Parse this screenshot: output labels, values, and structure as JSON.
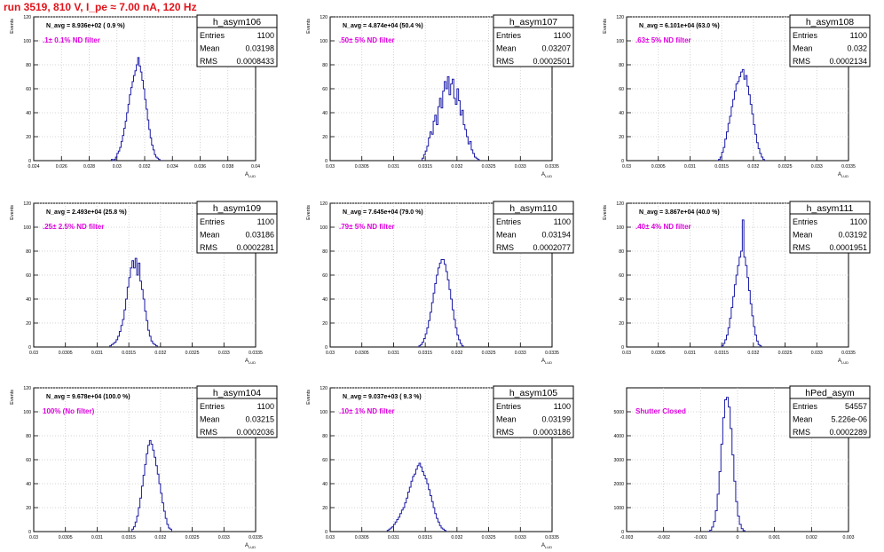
{
  "page_title": "run 3519,   810 V, I_pe ≈ 7.00 nA, 120 Hz",
  "colors": {
    "title": "#e0141a",
    "annotation": "#e000e0",
    "histogram": "#1a1aa6",
    "grid": "#c8c8c8"
  },
  "chart_data": [
    {
      "type": "histogram",
      "name": "h_asym106",
      "navg": "N_avg = 8.936e+02 ( 0.9 %)",
      "filter": ".1± 0.1% ND filter",
      "stats": {
        "entries": "1100",
        "mean": "0.03198",
        "rms": "0.0008433"
      },
      "ylabel": "Events",
      "xlabel": "A",
      "xlim": [
        0.024,
        0.04
      ],
      "ylim": [
        0,
        120
      ],
      "grid": true,
      "xticks": [
        "0.024",
        "0.026",
        "0.028",
        "0.03",
        "0.032",
        "0.034",
        "0.036",
        "0.038",
        "0.04"
      ],
      "yticks": [
        "0",
        "20",
        "40",
        "60",
        "80",
        "100",
        "120"
      ],
      "x_start": 0.0296,
      "bin_width": 0.0001,
      "counts": [
        1,
        0,
        1,
        3,
        6,
        8,
        11,
        16,
        21,
        27,
        33,
        40,
        47,
        55,
        61,
        66,
        71,
        75,
        80,
        86,
        79,
        74,
        67,
        60,
        51,
        43,
        34,
        26,
        19,
        13,
        9,
        5,
        3,
        2,
        1
      ]
    },
    {
      "type": "histogram",
      "name": "h_asym107",
      "navg": "N_avg = 4.874e+04 (50.4 %)",
      "filter": ".50± 5% ND filter",
      "stats": {
        "entries": "1100",
        "mean": "0.03207",
        "rms": "0.0002501"
      },
      "ylabel": "Events",
      "xlabel": "A",
      "xlim": [
        0.03,
        0.0335
      ],
      "ylim": [
        0,
        120
      ],
      "grid": true,
      "xticks": [
        "0.03",
        "0.0305",
        "0.031",
        "0.0315",
        "0.032",
        "0.0325",
        "0.033",
        "0.0335"
      ],
      "yticks": [
        "0",
        "20",
        "40",
        "60",
        "80",
        "100",
        "120"
      ],
      "x_start": 0.03145,
      "bin_width": 2.5e-05,
      "counts": [
        2,
        5,
        8,
        12,
        19,
        24,
        22,
        33,
        38,
        30,
        45,
        52,
        44,
        58,
        66,
        60,
        70,
        55,
        64,
        68,
        52,
        47,
        60,
        50,
        38,
        42,
        30,
        26,
        20,
        14,
        16,
        9,
        6,
        3,
        2,
        1
      ]
    },
    {
      "type": "histogram",
      "name": "h_asym108",
      "navg": "N_avg = 6.101e+04 (63.0 %)",
      "filter": ".63± 5% ND filter",
      "stats": {
        "entries": "1100",
        "mean": "0.032",
        "rms": "0.0002134"
      },
      "ylabel": "Events",
      "xlabel": "A",
      "xlim": [
        0.03,
        0.0335
      ],
      "ylim": [
        0,
        120
      ],
      "grid": true,
      "xticks": [
        "0.03",
        "0.0305",
        "0.031",
        "0.0315",
        "0.032",
        "0.0325",
        "0.033",
        "0.0335"
      ],
      "yticks": [
        "0",
        "20",
        "40",
        "60",
        "80",
        "100",
        "120"
      ],
      "x_start": 0.03145,
      "bin_width": 2.5e-05,
      "counts": [
        1,
        3,
        7,
        11,
        18,
        24,
        31,
        37,
        45,
        51,
        58,
        64,
        66,
        70,
        74,
        76,
        68,
        71,
        62,
        55,
        47,
        39,
        30,
        22,
        15,
        10,
        6,
        3,
        1
      ]
    },
    {
      "type": "histogram",
      "name": "h_asym109",
      "navg": "N_avg = 2.493e+04 (25.8 %)",
      "filter": ".25± 2.5% ND filter",
      "stats": {
        "entries": "1100",
        "mean": "0.03186",
        "rms": "0.0002281"
      },
      "ylabel": "Events",
      "xlabel": "A",
      "xlim": [
        0.03,
        0.0335
      ],
      "ylim": [
        0,
        120
      ],
      "grid": true,
      "xticks": [
        "0.03",
        "0.0305",
        "0.031",
        "0.0315",
        "0.032",
        "0.0325",
        "0.033",
        "0.0335"
      ],
      "yticks": [
        "0",
        "20",
        "40",
        "60",
        "80",
        "100",
        "120"
      ],
      "x_start": 0.0312,
      "bin_width": 2.5e-05,
      "counts": [
        1,
        2,
        3,
        4,
        6,
        9,
        13,
        18,
        23,
        31,
        40,
        50,
        58,
        66,
        72,
        66,
        74,
        60,
        70,
        55,
        48,
        40,
        30,
        22,
        14,
        9,
        5,
        3,
        2,
        1
      ]
    },
    {
      "type": "histogram",
      "name": "h_asym110",
      "navg": "N_avg = 7.645e+04 (79.0 %)",
      "filter": ".79± 5% ND filter",
      "stats": {
        "entries": "1100",
        "mean": "0.03194",
        "rms": "0.0002077"
      },
      "ylabel": "Events",
      "xlabel": "A",
      "xlim": [
        0.03,
        0.0335
      ],
      "ylim": [
        0,
        120
      ],
      "grid": true,
      "xticks": [
        "0.03",
        "0.0305",
        "0.031",
        "0.0315",
        "0.032",
        "0.0325",
        "0.033",
        "0.0335"
      ],
      "yticks": [
        "0",
        "20",
        "40",
        "60",
        "80",
        "100",
        "120"
      ],
      "x_start": 0.0314,
      "bin_width": 2.5e-05,
      "counts": [
        1,
        2,
        4,
        7,
        11,
        16,
        22,
        29,
        37,
        45,
        53,
        60,
        66,
        70,
        73,
        73,
        69,
        63,
        56,
        48,
        40,
        31,
        23,
        16,
        10,
        6,
        3,
        1
      ]
    },
    {
      "type": "histogram",
      "name": "h_asym111",
      "navg": "N_avg = 3.867e+04 (40.0 %)",
      "filter": ".40± 4% ND filter",
      "stats": {
        "entries": "1100",
        "mean": "0.03192",
        "rms": "0.0001951"
      },
      "ylabel": "Events",
      "xlabel": "A",
      "xlim": [
        0.03,
        0.0335
      ],
      "ylim": [
        0,
        120
      ],
      "grid": true,
      "xticks": [
        "0.03",
        "0.0305",
        "0.031",
        "0.0315",
        "0.032",
        "0.0325",
        "0.033",
        "0.0335"
      ],
      "yticks": [
        "0",
        "20",
        "40",
        "60",
        "80",
        "100",
        "120"
      ],
      "x_start": 0.0315,
      "bin_width": 2.5e-05,
      "counts": [
        1,
        3,
        6,
        10,
        16,
        24,
        33,
        42,
        52,
        60,
        68,
        75,
        80,
        106,
        75,
        68,
        58,
        47,
        36,
        26,
        17,
        10,
        5,
        2,
        1
      ]
    },
    {
      "type": "histogram",
      "name": "h_asym104",
      "navg": "N_avg = 9.678e+04 (100.0 %)",
      "filter": "100% (No filter)",
      "stats": {
        "entries": "1100",
        "mean": "0.03215",
        "rms": "0.0002036"
      },
      "ylabel": "Events",
      "xlabel": "A",
      "xlim": [
        0.03,
        0.0335
      ],
      "ylim": [
        0,
        120
      ],
      "grid": true,
      "xticks": [
        "0.03",
        "0.0305",
        "0.031",
        "0.0315",
        "0.032",
        "0.0325",
        "0.033",
        "0.0335"
      ],
      "yticks": [
        "0",
        "20",
        "40",
        "60",
        "80",
        "100",
        "120"
      ],
      "x_start": 0.03155,
      "bin_width": 2.5e-05,
      "counts": [
        2,
        4,
        8,
        13,
        20,
        28,
        38,
        47,
        56,
        65,
        72,
        76,
        73,
        68,
        62,
        55,
        48,
        40,
        32,
        24,
        17,
        11,
        6,
        3,
        2
      ]
    },
    {
      "type": "histogram",
      "name": "h_asym105",
      "navg": "N_avg = 9.037e+03 ( 9.3 %)",
      "filter": ".10± 1% ND filter",
      "stats": {
        "entries": "1100",
        "mean": "0.03199",
        "rms": "0.0003186"
      },
      "ylabel": "Events",
      "xlabel": "A",
      "xlim": [
        0.03,
        0.0335
      ],
      "ylim": [
        0,
        120
      ],
      "grid": true,
      "xticks": [
        "0.03",
        "0.0305",
        "0.031",
        "0.0315",
        "0.032",
        "0.0325",
        "0.033",
        "0.0335"
      ],
      "yticks": [
        "0",
        "20",
        "40",
        "60",
        "80",
        "100",
        "120"
      ],
      "x_start": 0.0309,
      "bin_width": 2.5e-05,
      "counts": [
        1,
        2,
        3,
        4,
        6,
        8,
        10,
        12,
        15,
        18,
        20,
        24,
        28,
        33,
        37,
        42,
        46,
        48,
        52,
        55,
        57,
        54,
        50,
        47,
        44,
        40,
        35,
        30,
        25,
        20,
        15,
        11,
        8,
        5,
        3,
        2,
        1
      ]
    },
    {
      "type": "histogram",
      "name": "hPed_asym",
      "navg": "",
      "filter": "Shutter Closed",
      "stats": {
        "entries": "54557",
        "mean": "5.226e-06",
        "rms": "0.0002289"
      },
      "ylabel": "",
      "xlabel": "",
      "xlim": [
        -0.003,
        0.003
      ],
      "ylim": [
        0,
        6000
      ],
      "grid": true,
      "xticks": [
        "-0.003",
        "-0.002",
        "-0.001",
        "0",
        "0.001",
        "0.002",
        "0.003"
      ],
      "yticks": [
        "0",
        "1000",
        "2000",
        "3000",
        "4000",
        "5000"
      ],
      "x_start": -0.0008,
      "bin_width": 5e-05,
      "counts": [
        10,
        60,
        190,
        420,
        870,
        1560,
        2500,
        3650,
        4750,
        5500,
        5600,
        5200,
        4300,
        3200,
        2100,
        1250,
        650,
        300,
        120,
        40
      ]
    }
  ]
}
